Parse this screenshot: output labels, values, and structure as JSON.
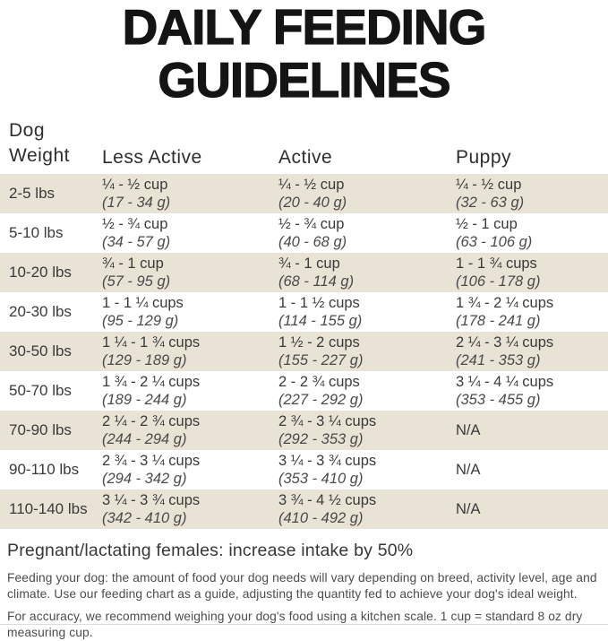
{
  "title": {
    "line1": "DAILY FEEDING",
    "line2": "GUIDELINES"
  },
  "table": {
    "headers": {
      "weight_line1": "Dog",
      "weight_line2": "Weight",
      "less_active": "Less Active",
      "active": "Active",
      "puppy": "Puppy"
    },
    "rows": [
      {
        "weight": "2-5 lbs",
        "cells": [
          {
            "cups": "¼ - ½ cup",
            "grams": "(17 - 34 g)"
          },
          {
            "cups": "¼ - ½ cup",
            "grams": "(20 - 40 g)"
          },
          {
            "cups": "¼ - ½ cup",
            "grams": "(32 - 63 g)"
          }
        ]
      },
      {
        "weight": "5-10 lbs",
        "cells": [
          {
            "cups": "½ - ¾ cup",
            "grams": "(34 - 57 g)"
          },
          {
            "cups": "½ - ¾ cup",
            "grams": "(40 - 68 g)"
          },
          {
            "cups": "½ - 1 cup",
            "grams": "(63 - 106 g)"
          }
        ]
      },
      {
        "weight": "10-20 lbs",
        "cells": [
          {
            "cups": "¾ - 1 cup",
            "grams": "(57 - 95 g)"
          },
          {
            "cups": "¾ - 1 cup",
            "grams": "(68 - 114 g)"
          },
          {
            "cups": "1 - 1 ¾ cups",
            "grams": "(106 - 178 g)"
          }
        ]
      },
      {
        "weight": "20-30 lbs",
        "cells": [
          {
            "cups": "1 - 1 ¼ cups",
            "grams": "(95 - 129 g)"
          },
          {
            "cups": "1 - 1 ½ cups",
            "grams": "(114 - 155 g)"
          },
          {
            "cups": "1 ¾ - 2 ¼ cups",
            "grams": "(178 - 241 g)"
          }
        ]
      },
      {
        "weight": "30-50 lbs",
        "cells": [
          {
            "cups": "1 ¼ - 1 ¾ cups",
            "grams": "(129 - 189 g)"
          },
          {
            "cups": "1 ½ - 2 cups",
            "grams": "(155 - 227 g)"
          },
          {
            "cups": "2 ¼ - 3 ¼ cups",
            "grams": "(241 - 353 g)"
          }
        ]
      },
      {
        "weight": "50-70 lbs",
        "cells": [
          {
            "cups": "1 ¾ - 2 ¼ cups",
            "grams": "(189 - 244 g)"
          },
          {
            "cups": "2 - 2 ¾ cups",
            "grams": "(227 - 292 g)"
          },
          {
            "cups": "3 ¼ - 4 ¼ cups",
            "grams": "(353 - 455 g)"
          }
        ]
      },
      {
        "weight": "70-90 lbs",
        "cells": [
          {
            "cups": "2 ¼ - 2 ¾ cups",
            "grams": "(244 - 294 g)"
          },
          {
            "cups": "2 ¾ - 3 ¼ cups",
            "grams": "(292 - 353 g)"
          },
          {
            "cups": "N/A",
            "grams": ""
          }
        ]
      },
      {
        "weight": "90-110 lbs",
        "cells": [
          {
            "cups": "2 ¾ - 3 ¼ cups",
            "grams": "(294 - 342 g)"
          },
          {
            "cups": "3 ¼ - 3 ¾ cups",
            "grams": "(353 - 410 g)"
          },
          {
            "cups": "N/A",
            "grams": ""
          }
        ]
      },
      {
        "weight": "110-140 lbs",
        "cells": [
          {
            "cups": "3 ¼ - 3 ¾ cups",
            "grams": "(342 - 410 g)"
          },
          {
            "cups": "3 ¾ - 4 ½ cups",
            "grams": "(410 - 492 g)"
          },
          {
            "cups": "N/A",
            "grams": ""
          }
        ]
      }
    ]
  },
  "notes": {
    "pregnant": "Pregnant/lactating females: increase intake by 50%",
    "feeding": "Feeding your dog: the amount of food your dog needs will vary depending on breed, activity level, age and climate. Use our feeding chart as a guide, adjusting the quantity fed to achieve your dog's ideal weight.",
    "accuracy": "For accuracy, we recommend weighing your dog's food using a kitchen scale. 1 cup = standard 8 oz dry measuring cup."
  },
  "colors": {
    "row_shade": "#e8e3d4",
    "title_color": "#141414",
    "text": "#3a3a3a",
    "rule_color": "#dcdcdc"
  }
}
